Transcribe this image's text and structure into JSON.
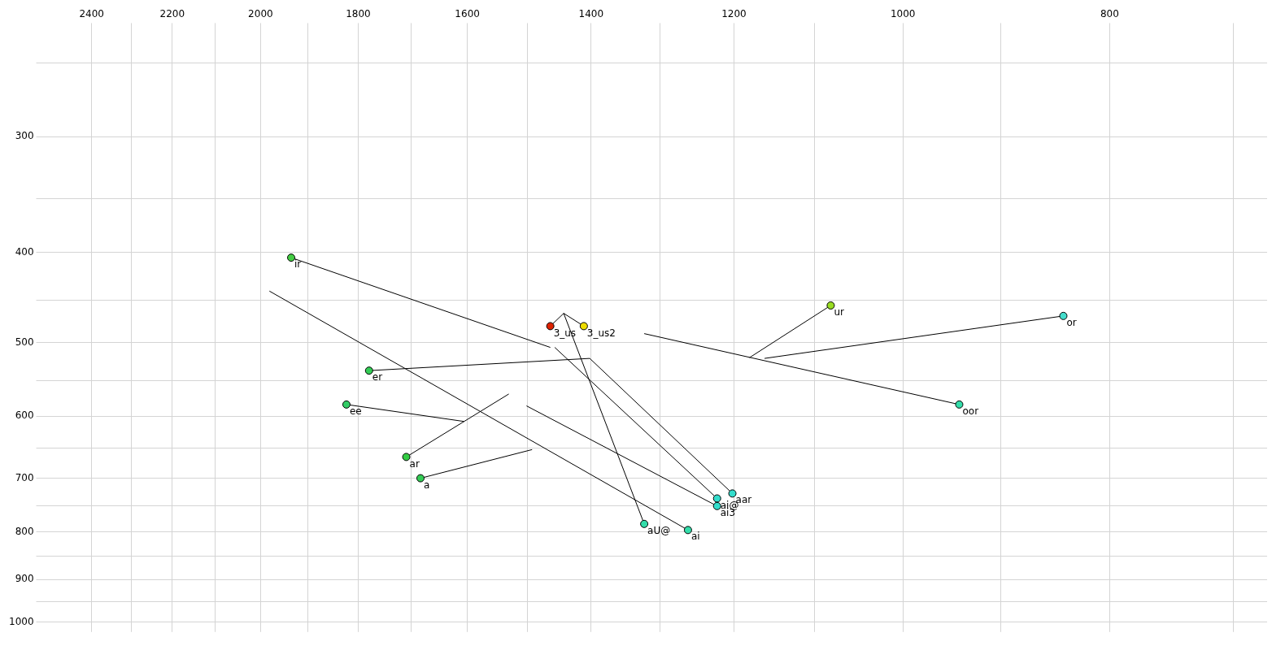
{
  "chart_data": {
    "type": "scatter",
    "log": "xy",
    "grid": true,
    "legend": false,
    "xlim": [
      2530,
      675
    ],
    "ylim": [
      1025,
      230
    ],
    "xticks": [
      2400,
      {
        "value": 2300,
        "label": null
      },
      2200,
      {
        "value": 2100,
        "label": null
      },
      2000,
      {
        "value": 1900,
        "label": null
      },
      1800,
      {
        "value": 1700,
        "label": null
      },
      1600,
      {
        "value": 1500,
        "label": null
      },
      1400,
      {
        "value": 1300,
        "label": null
      },
      1200,
      {
        "value": 1100,
        "label": null
      },
      1000,
      {
        "value": 900,
        "label": null
      },
      800,
      {
        "value": 700,
        "label": null
      }
    ],
    "yticks": [
      {
        "value": 250,
        "label": null
      },
      300,
      {
        "value": 350,
        "label": null
      },
      400,
      {
        "value": 450,
        "label": null
      },
      500,
      {
        "value": 550,
        "label": null
      },
      600,
      {
        "value": 650,
        "label": null
      },
      700,
      {
        "value": 750,
        "label": null
      },
      800,
      {
        "value": 850,
        "label": null
      },
      900,
      {
        "value": 950,
        "label": null
      },
      1000
    ],
    "series": [
      {
        "marker": "circle",
        "x": [
          1935,
          1463,
          1411,
          1081,
          841,
          1779,
          1823,
          941,
          1709,
          1683,
          1202,
          1222,
          1222,
          1322,
          1261
        ],
        "values": [
          405,
          480,
          480,
          456,
          468,
          536,
          583,
          583,
          664,
          700,
          727,
          736,
          750,
          784,
          796
        ],
        "colors": [
          "#44cc44",
          "#dd2200",
          "#eedd00",
          "#99dd22",
          "#44ddcc",
          "#33cc55",
          "#33cc66",
          "#33ddaa",
          "#33cc44",
          "#33cc55",
          "#33ddcc",
          "#33ddcc",
          "#33ddcc",
          "#33ddaa",
          "#33ddaa"
        ]
      },
      {
        "type": "line",
        "marker": "none",
        "color": "#000000",
        "x": [
          1935,
          1463
        ],
        "values": [
          405,
          506
        ]
      },
      {
        "type": "line",
        "marker": "none",
        "color": "#000000",
        "x": [
          1463,
          1442
        ],
        "values": [
          480,
          465
        ]
      },
      {
        "type": "line",
        "marker": "none",
        "color": "#000000",
        "x": [
          1411,
          1442
        ],
        "values": [
          480,
          465
        ]
      },
      {
        "type": "line",
        "marker": "none",
        "color": "#000000",
        "x": [
          1322,
          1442
        ],
        "values": [
          784,
          465
        ]
      },
      {
        "type": "line",
        "marker": "none",
        "color": "#000000",
        "x": [
          1081,
          1180
        ],
        "values": [
          456,
          519
        ]
      },
      {
        "type": "line",
        "marker": "none",
        "color": "#000000",
        "x": [
          841,
          1161
        ],
        "values": [
          468,
          520
        ]
      },
      {
        "type": "line",
        "marker": "none",
        "color": "#000000",
        "x": [
          941,
          1322
        ],
        "values": [
          583,
          489
        ]
      },
      {
        "type": "line",
        "marker": "none",
        "color": "#000000",
        "x": [
          1779,
          1402
        ],
        "values": [
          536,
          520
        ]
      },
      {
        "type": "line",
        "marker": "none",
        "color": "#000000",
        "x": [
          1202,
          1402
        ],
        "values": [
          727,
          520
        ]
      },
      {
        "type": "line",
        "marker": "none",
        "color": "#000000",
        "x": [
          1823,
          1606
        ],
        "values": [
          583,
          608
        ]
      },
      {
        "type": "line",
        "marker": "none",
        "color": "#000000",
        "x": [
          1709,
          1530
        ],
        "values": [
          664,
          568
        ]
      },
      {
        "type": "line",
        "marker": "none",
        "color": "#000000",
        "x": [
          1683,
          1492
        ],
        "values": [
          700,
          652
        ]
      },
      {
        "type": "line",
        "marker": "none",
        "color": "#000000",
        "x": [
          1222,
          1456
        ],
        "values": [
          736,
          506
        ]
      },
      {
        "type": "line",
        "marker": "none",
        "color": "#000000",
        "x": [
          1222,
          1501
        ],
        "values": [
          750,
          585
        ]
      },
      {
        "type": "line",
        "marker": "none",
        "color": "#000000",
        "x": [
          1261,
          1981
        ],
        "values": [
          796,
          440
        ]
      }
    ],
    "annotations": [
      {
        "text": "ir",
        "x": 1935,
        "y": 405
      },
      {
        "text": "3_us",
        "x": 1463,
        "y": 480
      },
      {
        "text": "3_us2",
        "x": 1411,
        "y": 480
      },
      {
        "text": "ur",
        "x": 1081,
        "y": 456
      },
      {
        "text": "or",
        "x": 841,
        "y": 468
      },
      {
        "text": "er",
        "x": 1779,
        "y": 536
      },
      {
        "text": "ee",
        "x": 1823,
        "y": 583
      },
      {
        "text": "oor",
        "x": 941,
        "y": 583
      },
      {
        "text": "ar",
        "x": 1709,
        "y": 664
      },
      {
        "text": "a",
        "x": 1683,
        "y": 700
      },
      {
        "text": "aar",
        "x": 1202,
        "y": 727
      },
      {
        "text": "ai@",
        "x": 1222,
        "y": 736
      },
      {
        "text": "ai3",
        "x": 1222,
        "y": 750
      },
      {
        "text": "aU@",
        "x": 1322,
        "y": 784
      },
      {
        "text": "ai",
        "x": 1261,
        "y": 796
      }
    ]
  }
}
